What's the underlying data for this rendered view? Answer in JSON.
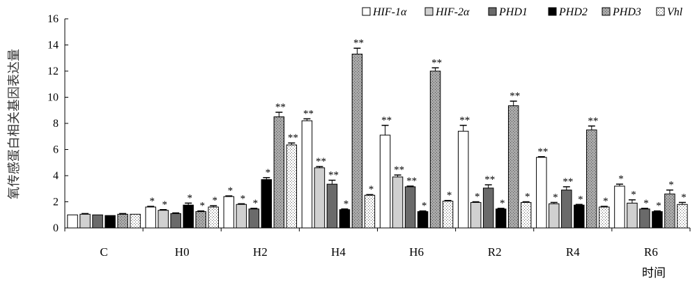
{
  "chart_data": {
    "type": "bar",
    "title": "",
    "ylabel": "氧传感蛋白相关基因表达量",
    "xlabel": "时间",
    "ylim": [
      0,
      16
    ],
    "yticks": [
      0,
      2,
      4,
      6,
      8,
      10,
      12,
      14,
      16
    ],
    "categories": [
      "C",
      "H0",
      "H2",
      "H4",
      "H6",
      "R2",
      "R4",
      "R6"
    ],
    "legend_position": "top-right",
    "series": [
      {
        "name": "HIF-1α",
        "values": [
          1.0,
          1.6,
          2.4,
          8.2,
          7.1,
          7.4,
          5.4,
          3.2
        ],
        "errors": [
          0.0,
          0.05,
          0.05,
          0.15,
          0.75,
          0.45,
          0.05,
          0.15
        ],
        "significance": [
          "",
          "*",
          "*",
          "**",
          "**",
          "**",
          "**",
          "*"
        ]
      },
      {
        "name": "HIF-2α",
        "values": [
          1.05,
          1.35,
          1.8,
          4.6,
          3.9,
          1.95,
          1.85,
          1.9
        ],
        "errors": [
          0.05,
          0.05,
          0.05,
          0.1,
          0.15,
          0.05,
          0.1,
          0.25
        ],
        "significance": [
          "",
          "*",
          "*",
          "**",
          "**",
          "*",
          "*",
          "*"
        ]
      },
      {
        "name": "PHD1",
        "values": [
          1.0,
          1.1,
          1.45,
          3.35,
          3.15,
          3.05,
          2.9,
          1.45
        ],
        "errors": [
          0.0,
          0.05,
          0.05,
          0.3,
          0.05,
          0.25,
          0.25,
          0.05
        ],
        "significance": [
          "",
          "",
          "*",
          "**",
          "**",
          "**",
          "**",
          "*"
        ]
      },
      {
        "name": "PHD2",
        "values": [
          0.95,
          1.75,
          3.7,
          1.4,
          1.25,
          1.45,
          1.75,
          1.25
        ],
        "errors": [
          0.0,
          0.15,
          0.15,
          0.05,
          0.05,
          0.05,
          0.05,
          0.05
        ],
        "significance": [
          "",
          "*",
          "*",
          "*",
          "*",
          "*",
          "*",
          "*"
        ]
      },
      {
        "name": "PHD3",
        "values": [
          1.05,
          1.25,
          8.5,
          13.3,
          12.0,
          9.35,
          7.5,
          2.6
        ],
        "errors": [
          0.05,
          0.05,
          0.35,
          0.45,
          0.25,
          0.35,
          0.3,
          0.3
        ],
        "significance": [
          "",
          "*",
          "**",
          "**",
          "**",
          "**",
          "**",
          "*"
        ]
      },
      {
        "name": "Vhl",
        "values": [
          1.05,
          1.6,
          6.35,
          2.5,
          2.05,
          1.95,
          1.6,
          1.8
        ],
        "errors": [
          0.0,
          0.1,
          0.15,
          0.05,
          0.05,
          0.05,
          0.05,
          0.15
        ],
        "significance": [
          "",
          "*",
          "**",
          "*",
          "*",
          "*",
          "*",
          "*"
        ]
      }
    ],
    "grid": false
  }
}
